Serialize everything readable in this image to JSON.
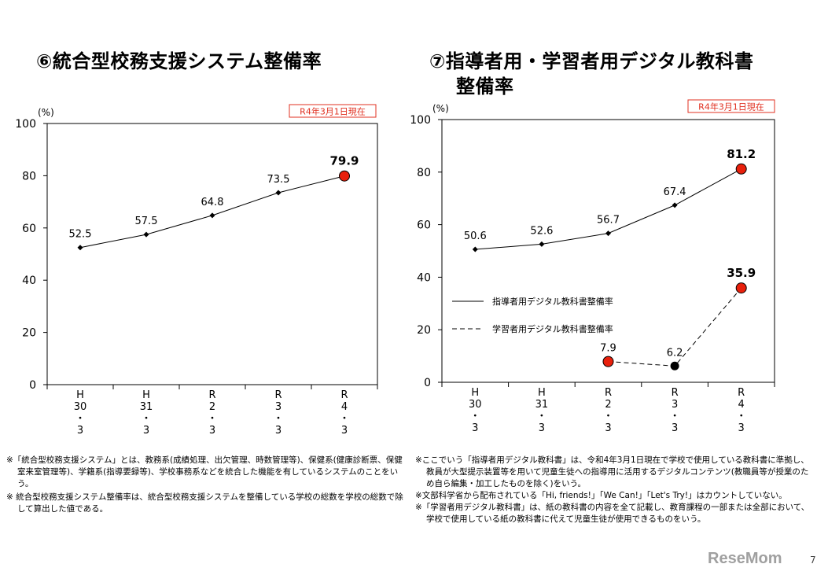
{
  "charts_titles": {
    "left": "⑥統合型校務支援システム整備率",
    "right_line1": "⑦指導者用・学習者用デジタル教科書",
    "right_line2": "整備率"
  },
  "chart_data": [
    {
      "type": "line",
      "title": "⑥統合型校務支援システム整備率",
      "unit_label": "(%)",
      "date_badge": "R4年3月1日現在",
      "categories": [
        [
          "H",
          "30",
          "・",
          "3"
        ],
        [
          "H",
          "31",
          "・",
          "3"
        ],
        [
          "R",
          "2",
          "・",
          "3"
        ],
        [
          "R",
          "3",
          "・",
          "3"
        ],
        [
          "R",
          "4",
          "・",
          "3"
        ]
      ],
      "ylim": [
        0,
        100
      ],
      "yticks": [
        0,
        20,
        40,
        60,
        80,
        100
      ],
      "grid": false,
      "series": [
        {
          "values": [
            52.5,
            57.5,
            64.8,
            73.5,
            79.9
          ],
          "labels": [
            "52.5",
            "57.5",
            "64.8",
            "73.5",
            "79.9"
          ],
          "style": "solid",
          "highlight_last": true
        }
      ]
    },
    {
      "type": "line",
      "title": "⑦指導者用・学習者用デジタル教科書整備率",
      "unit_label": "(%)",
      "date_badge": "R4年3月1日現在",
      "categories": [
        [
          "H",
          "30",
          "・",
          "3"
        ],
        [
          "H",
          "31",
          "・",
          "3"
        ],
        [
          "R",
          "2",
          "・",
          "3"
        ],
        [
          "R",
          "3",
          "・",
          "3"
        ],
        [
          "R",
          "4",
          "・",
          "3"
        ]
      ],
      "ylim": [
        0,
        100
      ],
      "yticks": [
        0,
        20,
        40,
        60,
        80,
        100
      ],
      "grid": false,
      "legend": "center-left",
      "series": [
        {
          "name": "指導者用デジタル教科書整備率",
          "values": [
            50.6,
            52.6,
            56.7,
            67.4,
            81.2
          ],
          "labels": [
            "50.6",
            "52.6",
            "56.7",
            "67.4",
            "81.2"
          ],
          "style": "solid"
        },
        {
          "name": "学習者用デジタル教科書整備率",
          "values": [
            null,
            null,
            7.9,
            6.2,
            35.9
          ],
          "labels": [
            null,
            null,
            "7.9",
            "6.2",
            "35.9"
          ],
          "style": "dashed"
        }
      ]
    }
  ],
  "notes_left": [
    "※「統合型校務支援システム」とは、教務系(成績処理、出欠管理、時数管理等)、保健系(健康診断票、保健室来室管理等)、学籍系(指導要録等)、学校事務系などを統合した機能を有しているシステムのことをいう。",
    "※ 統合型校務支援システム整備率は、統合型校務支援システムを整備している学校の総数を学校の総数で除して算出した値である。"
  ],
  "notes_right": [
    "※ここでいう「指導者用デジタル教科書」は、令和4年3月1日現在で学校で使用している教科書に準拠し、教員が大型提示装置等を用いて児童生徒への指導用に活用するデジタルコンテンツ(教職員等が授業のため自ら編集・加工したものを除く)をいう。",
    "※文部科学省から配布されている「Hi, friends!」「We Can!」「Let's Try!」はカウントしていない。",
    "※「学習者用デジタル教科書」は、紙の教科書の内容を全て記載し、教育課程の一部または全部において、学校で使用している紙の教科書に代えて児童生徒が使用できるものをいう。"
  ],
  "colors": {
    "highlight": "#e8200c",
    "badge": "#e03020",
    "line": "#000000"
  },
  "watermark": "ReseMom",
  "page_number": "7"
}
